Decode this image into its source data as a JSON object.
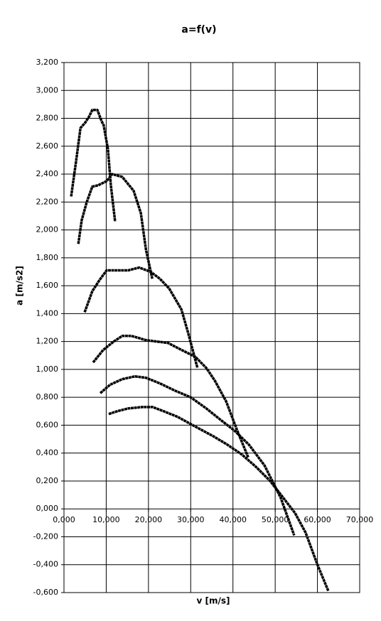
{
  "chart_data": {
    "type": "line",
    "title": "a=f(v)",
    "x_label": "v [m/s]",
    "y_label": "a [m/s2]",
    "xlim": [
      0,
      70
    ],
    "ylim": [
      -0.6,
      3.2
    ],
    "grid": true,
    "xticks": [
      {
        "value": 0,
        "label": "0,000"
      },
      {
        "value": 10,
        "label": "10,000"
      },
      {
        "value": 20,
        "label": "20,000"
      },
      {
        "value": 30,
        "label": "30,000"
      },
      {
        "value": 40,
        "label": "40,000"
      },
      {
        "value": 50,
        "label": "50,000"
      },
      {
        "value": 60,
        "label": "60,000"
      },
      {
        "value": 70,
        "label": "70,000"
      }
    ],
    "yticks": [
      {
        "value": 3.2,
        "label": "3,200"
      },
      {
        "value": 3.0,
        "label": "3,000"
      },
      {
        "value": 2.8,
        "label": "2,800"
      },
      {
        "value": 2.6,
        "label": "2,600"
      },
      {
        "value": 2.4,
        "label": "2,400"
      },
      {
        "value": 2.2,
        "label": "2,200"
      },
      {
        "value": 2.0,
        "label": "2,000"
      },
      {
        "value": 1.8,
        "label": "1,800"
      },
      {
        "value": 1.6,
        "label": "1,600"
      },
      {
        "value": 1.4,
        "label": "1,400"
      },
      {
        "value": 1.2,
        "label": "1,200"
      },
      {
        "value": 1.0,
        "label": "1,000"
      },
      {
        "value": 0.8,
        "label": "0,800"
      },
      {
        "value": 0.6,
        "label": "0,600"
      },
      {
        "value": 0.4,
        "label": "0,400"
      },
      {
        "value": 0.2,
        "label": "0,200"
      },
      {
        "value": 0,
        "label": "0,000"
      },
      {
        "value": -0.2,
        "label": "-0,200"
      },
      {
        "value": -0.4,
        "label": "-0,400"
      },
      {
        "value": -0.6,
        "label": "-0,600"
      }
    ],
    "series": [
      {
        "color": "#000000",
        "x": [
          1.7,
          2.9,
          3.9,
          5.05,
          5.9,
          6.7,
          7.9,
          8.9,
          9.4,
          10.4,
          11.1,
          12.1
        ],
        "values": [
          2.24,
          2.5,
          2.73,
          2.77,
          2.81,
          2.86,
          2.86,
          2.78,
          2.75,
          2.58,
          2.32,
          2.06
        ]
      },
      {
        "color": "#000000",
        "x": [
          3.4,
          4.2,
          5.4,
          6.7,
          8.1,
          10.1,
          11.4,
          13.8,
          16.5,
          18.2,
          19.4,
          20.9
        ],
        "values": [
          1.9,
          2.07,
          2.2,
          2.31,
          2.32,
          2.35,
          2.4,
          2.38,
          2.28,
          2.12,
          1.86,
          1.65
        ]
      },
      {
        "color": "#000000",
        "x": [
          4.9,
          6.7,
          8.4,
          10.1,
          11.8,
          15.2,
          17.8,
          20.5,
          22.7,
          24.9,
          27.8,
          29.5,
          31.6
        ],
        "values": [
          1.41,
          1.56,
          1.64,
          1.71,
          1.71,
          1.71,
          1.73,
          1.7,
          1.65,
          1.58,
          1.43,
          1.25,
          1.01
        ]
      },
      {
        "color": "#000000",
        "x": [
          6.9,
          9.3,
          11.8,
          13.8,
          16.0,
          19.4,
          21.9,
          24.6,
          27.8,
          31.1,
          33.7,
          35.7,
          38.4,
          40.9,
          43.6
        ],
        "values": [
          1.05,
          1.14,
          1.2,
          1.24,
          1.24,
          1.21,
          1.2,
          1.19,
          1.14,
          1.09,
          1.01,
          0.92,
          0.77,
          0.57,
          0.37
        ]
      },
      {
        "color": "#000000",
        "x": [
          8.6,
          10.9,
          13.8,
          16.8,
          19.4,
          22.7,
          26.1,
          30.0,
          33.7,
          37.0,
          40.4,
          43.8,
          47.5,
          51.3,
          54.5
        ],
        "values": [
          0.83,
          0.89,
          0.93,
          0.95,
          0.94,
          0.9,
          0.85,
          0.8,
          0.72,
          0.64,
          0.56,
          0.46,
          0.31,
          0.08,
          -0.19
        ]
      },
      {
        "color": "#000000",
        "x": [
          10.6,
          12.6,
          15.2,
          18.5,
          21.0,
          23.6,
          26.9,
          31.1,
          35.4,
          38.7,
          42.1,
          45.5,
          48.8,
          51.9,
          54.7,
          57.2,
          60.0,
          62.6
        ],
        "values": [
          0.68,
          0.7,
          0.72,
          0.73,
          0.73,
          0.7,
          0.66,
          0.59,
          0.52,
          0.46,
          0.39,
          0.3,
          0.2,
          0.08,
          -0.03,
          -0.17,
          -0.4,
          -0.59
        ]
      }
    ]
  }
}
